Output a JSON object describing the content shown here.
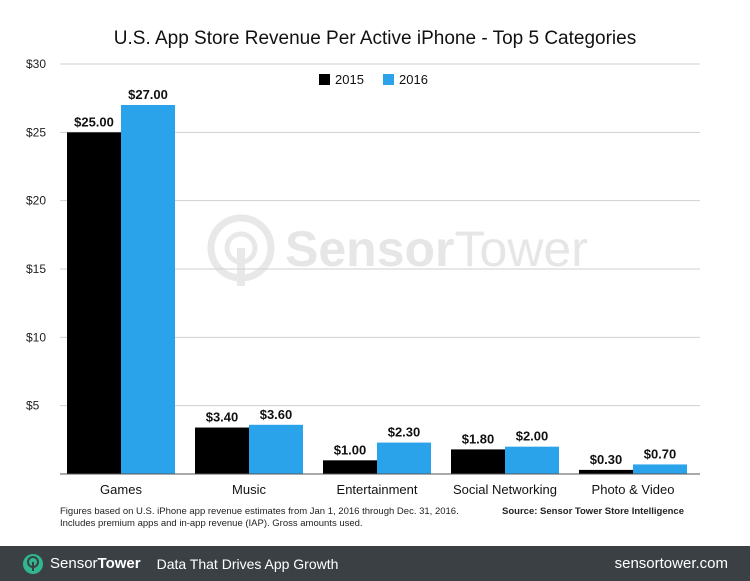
{
  "chart_data": {
    "type": "bar",
    "title": "U.S. App Store Revenue Per Active iPhone - Top 5 Categories",
    "categories": [
      "Games",
      "Music",
      "Entertainment",
      "Social Networking",
      "Photo & Video"
    ],
    "series": [
      {
        "name": "2015",
        "color": "#000000",
        "values": [
          25.0,
          3.4,
          1.0,
          1.8,
          0.3
        ],
        "labels": [
          "$25.00",
          "$3.40",
          "$1.00",
          "$1.80",
          "$0.30"
        ]
      },
      {
        "name": "2016",
        "color": "#2aa3ea",
        "values": [
          27.0,
          3.6,
          2.3,
          2.0,
          0.7
        ],
        "labels": [
          "$27.00",
          "$3.60",
          "$2.30",
          "$2.00",
          "$0.70"
        ]
      }
    ],
    "ylim": [
      0,
      30
    ],
    "yticks": [
      5,
      10,
      15,
      20,
      25,
      30
    ],
    "ytick_labels": [
      "$5",
      "$10",
      "$15",
      "$20",
      "$25",
      "$30"
    ],
    "grid": true,
    "legend_position": "top-center"
  },
  "watermark": {
    "word1": "Sensor",
    "word2": "Tower"
  },
  "footnote": {
    "line1": "Figures based on U.S. iPhone app revenue estimates from Jan 1, 2016 through Dec. 31, 2016.",
    "line2": "Includes premium apps and in-app revenue (IAP). Gross amounts used."
  },
  "source": "Source: Sensor Tower Store Intelligence",
  "footer": {
    "brand1": "Sensor",
    "brand2": "Tower",
    "tagline": "Data That Drives App Growth",
    "url": "sensortower.com",
    "logo_icon": "sensor-tower-logo-icon"
  }
}
